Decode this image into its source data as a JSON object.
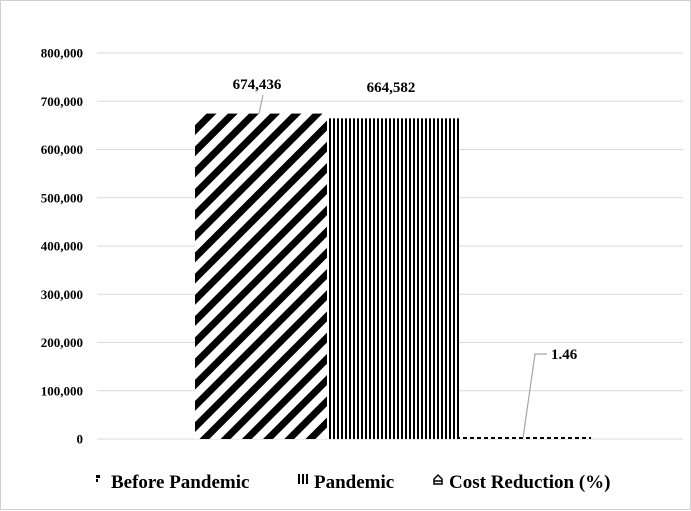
{
  "chart_data": {
    "type": "bar",
    "categories": [
      ""
    ],
    "series": [
      {
        "name": "Before Pandemic",
        "values": [
          674436
        ],
        "label": "674,436",
        "pattern": "diagonal-stripes",
        "color": "#000000"
      },
      {
        "name": "Pandemic",
        "values": [
          664582
        ],
        "label": "664,582",
        "pattern": "vertical-stripes",
        "color": "#000000"
      },
      {
        "name": "Cost Reduction (%)",
        "values": [
          1.46
        ],
        "label": "1.46",
        "pattern": "dashed",
        "color": "#000000"
      }
    ],
    "title": "",
    "xlabel": "",
    "ylabel": "",
    "ylim": [
      0,
      800000
    ],
    "yticks": [
      0,
      100000,
      200000,
      300000,
      400000,
      500000,
      600000,
      700000,
      800000
    ],
    "ytick_labels": [
      "0",
      "100,000",
      "200,000",
      "300,000",
      "400,000",
      "500,000",
      "600,000",
      "700,000",
      "800,000"
    ],
    "grid": true,
    "legend_position": "bottom",
    "gridline_color": "#d9d9d9"
  }
}
